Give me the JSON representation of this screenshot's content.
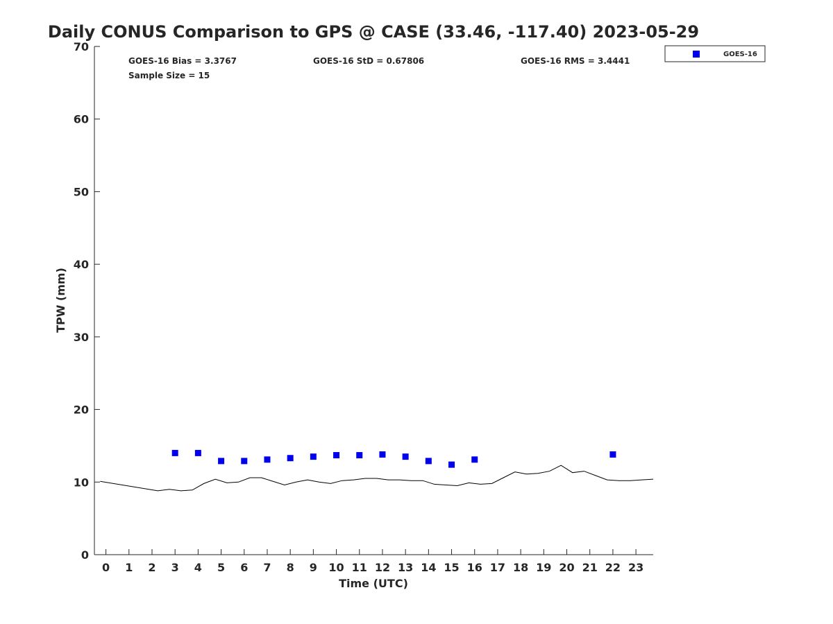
{
  "chart_data": {
    "type": "scatter",
    "title": "Daily CONUS Comparison to GPS @ CASE (33.46, -117.40) 2023-05-29",
    "xlabel": "Time (UTC)",
    "ylabel": "TPW (mm)",
    "xlim": [
      -0.5,
      23.75
    ],
    "ylim": [
      0,
      70
    ],
    "xticks": [
      0,
      1,
      2,
      3,
      4,
      5,
      6,
      7,
      8,
      9,
      10,
      11,
      12,
      13,
      14,
      15,
      16,
      17,
      18,
      19,
      20,
      21,
      22,
      23
    ],
    "yticks": [
      0,
      10,
      20,
      30,
      40,
      50,
      60,
      70
    ],
    "grid": false,
    "legend": {
      "placement": "top-right-outside",
      "entries": [
        "GOES-16"
      ]
    },
    "stats": {
      "bias": "GOES-16 Bias = 3.3767",
      "std": "GOES-16 StD = 0.67806",
      "rms": "GOES-16 RMS = 3.4441",
      "sample": "Sample Size = 15"
    },
    "series": [
      {
        "name": "GOES-16",
        "kind": "markers",
        "color": "#0000ee",
        "x": [
          3,
          4,
          5,
          6,
          7,
          8,
          9,
          10,
          11,
          12,
          13,
          14,
          15,
          16,
          22
        ],
        "y": [
          14.0,
          14.0,
          12.9,
          12.9,
          13.1,
          13.3,
          13.5,
          13.7,
          13.7,
          13.8,
          13.5,
          12.9,
          12.4,
          13.1,
          13.8
        ]
      },
      {
        "name": "GPS",
        "kind": "line",
        "color": "#000000",
        "x": [
          -0.25,
          2.25,
          2.75,
          3.25,
          3.75,
          4.25,
          4.75,
          5.25,
          5.75,
          6.25,
          6.75,
          7.25,
          7.75,
          8.25,
          8.75,
          9.25,
          9.75,
          10.25,
          10.75,
          11.25,
          11.75,
          12.25,
          12.75,
          13.25,
          13.75,
          14.25,
          14.75,
          15.25,
          15.75,
          16.25,
          16.75,
          17.25,
          17.75,
          18.25,
          18.75,
          19.25,
          19.75,
          20.25,
          20.75,
          21.25,
          21.75,
          22.25,
          22.75,
          23.25,
          23.75
        ],
        "y": [
          10.1,
          8.8,
          9.0,
          8.8,
          8.9,
          9.8,
          10.4,
          9.9,
          10.0,
          10.6,
          10.6,
          10.1,
          9.6,
          10.0,
          10.3,
          10.0,
          9.8,
          10.2,
          10.3,
          10.5,
          10.5,
          10.3,
          10.3,
          10.2,
          10.2,
          9.7,
          9.6,
          9.5,
          9.9,
          9.7,
          9.8,
          10.6,
          11.4,
          11.1,
          11.2,
          11.5,
          12.3,
          11.3,
          11.5,
          10.9,
          10.3,
          10.2,
          10.2,
          10.3,
          10.4
        ]
      }
    ]
  }
}
